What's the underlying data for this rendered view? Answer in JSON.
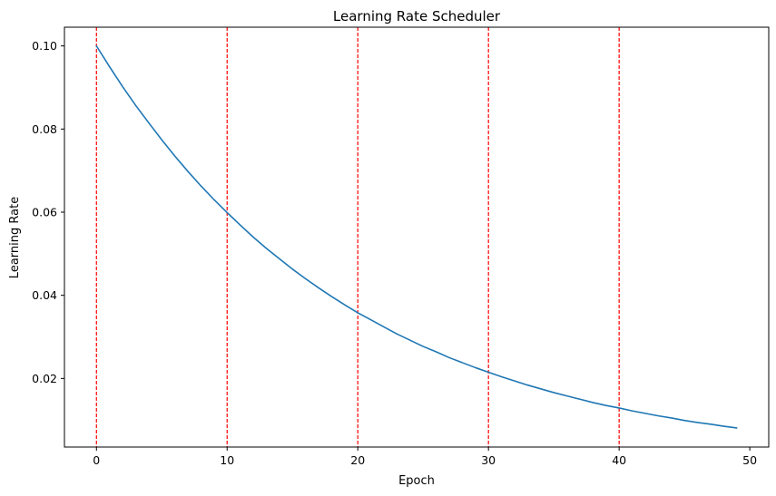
{
  "chart_data": {
    "type": "line",
    "title": "Learning Rate Scheduler",
    "xlabel": "Epoch",
    "ylabel": "Learning Rate",
    "xlim": [
      -2.45,
      51.45
    ],
    "ylim": [
      0.0035,
      0.1045
    ],
    "xticks": [
      0,
      10,
      20,
      30,
      40,
      50
    ],
    "xtick_labels": [
      "0",
      "10",
      "20",
      "30",
      "40",
      "50"
    ],
    "yticks": [
      0.02,
      0.04,
      0.06,
      0.08,
      0.1
    ],
    "ytick_labels": [
      "0.02",
      "0.04",
      "0.06",
      "0.08",
      "0.10"
    ],
    "grid": false,
    "legend": "none",
    "series": [
      {
        "color": "#1f77b4",
        "x": [
          0,
          1,
          2,
          3,
          4,
          5,
          6,
          7,
          8,
          9,
          10,
          11,
          12,
          13,
          14,
          15,
          16,
          17,
          18,
          19,
          20,
          21,
          22,
          23,
          24,
          25,
          26,
          27,
          28,
          29,
          30,
          31,
          32,
          33,
          34,
          35,
          36,
          37,
          38,
          39,
          40,
          41,
          42,
          43,
          44,
          45,
          46,
          47,
          48,
          49
        ],
        "y": [
          0.1,
          0.095,
          0.0902,
          0.0857,
          0.0815,
          0.0774,
          0.0735,
          0.0698,
          0.0663,
          0.063,
          0.0599,
          0.0569,
          0.054,
          0.0513,
          0.0488,
          0.0463,
          0.044,
          0.0418,
          0.0397,
          0.0377,
          0.0358,
          0.0341,
          0.0324,
          0.0307,
          0.0292,
          0.0277,
          0.0264,
          0.025,
          0.0238,
          0.0226,
          0.0215,
          0.0204,
          0.0194,
          0.0184,
          0.0175,
          0.0166,
          0.0158,
          0.015,
          0.0142,
          0.0135,
          0.0129,
          0.0122,
          0.0116,
          0.011,
          0.0105,
          0.0099,
          0.0094,
          0.009,
          0.0085,
          0.0081
        ]
      }
    ],
    "vertical_lines": {
      "x": [
        0,
        10,
        20,
        30,
        40
      ],
      "color": "#ff0000",
      "style": "dashed"
    },
    "colors": {
      "axes": "#000000",
      "background": "#ffffff"
    }
  }
}
